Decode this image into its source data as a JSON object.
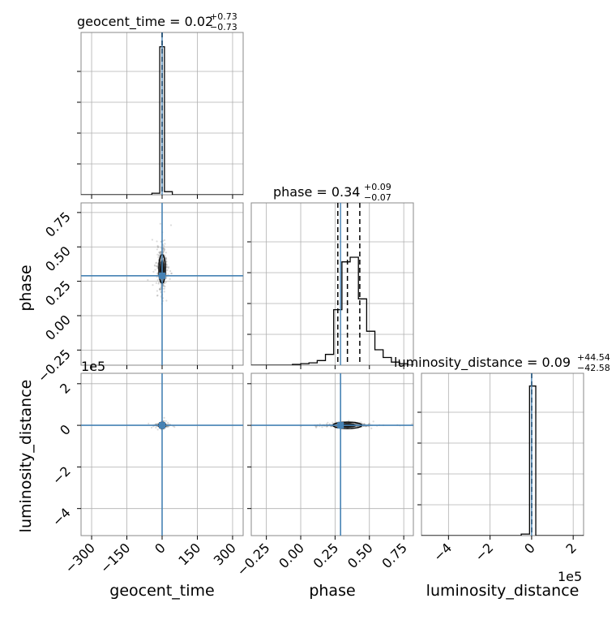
{
  "chart_data": {
    "type": "corner",
    "parameters": [
      "geocent_time",
      "phase",
      "luminosity_distance"
    ],
    "titles": {
      "geocent_time": {
        "name": "geocent_time",
        "median": "0.02",
        "plus": "+0.73",
        "minus": "−0.73"
      },
      "phase": {
        "name": "phase",
        "median": "0.34",
        "plus": "+0.09",
        "minus": "−0.07"
      },
      "luminosity_distance": {
        "name": "luminosity_distance",
        "median": "0.09",
        "plus": "+44.54",
        "minus": "−42.58"
      }
    },
    "ranges": {
      "geocent_time": [
        -345,
        345
      ],
      "phase": [
        -0.36,
        0.82
      ],
      "luminosity_distance": [
        -530000,
        250000
      ]
    },
    "ticks": {
      "geocent_time": {
        "values": [
          -300,
          -150,
          0,
          150,
          300
        ],
        "labels": [
          "−300",
          "−150",
          "0",
          "150",
          "300"
        ]
      },
      "phase": {
        "values": [
          -0.25,
          0.0,
          0.25,
          0.5,
          0.75
        ],
        "labels": [
          "−0.25",
          "0.00",
          "0.25",
          "0.50",
          "0.75"
        ]
      },
      "luminosity_distance": {
        "values": [
          -400000,
          -200000,
          0,
          200000
        ],
        "labels": [
          "−4",
          "−2",
          "0",
          "2"
        ]
      }
    },
    "offset_label": "1e5",
    "truths": {
      "geocent_time": 0.0,
      "phase": 0.29,
      "luminosity_distance": 0.0
    },
    "quantiles": {
      "geocent_time": [
        -0.71,
        0.02,
        0.75
      ],
      "phase": [
        0.27,
        0.34,
        0.43
      ],
      "luminosity_distance": [
        -42.49,
        0.09,
        44.63
      ]
    },
    "histograms": {
      "geocent_time": {
        "bins": [
          -345,
          -311.5,
          -278,
          -244.5,
          -211,
          -177.5,
          -144,
          -110.5,
          -77,
          -43.5,
          -10,
          10,
          43.5,
          77,
          110.5,
          144,
          177.5,
          211,
          244.5,
          278,
          311.5,
          345
        ],
        "counts": [
          0,
          0,
          0,
          0,
          0,
          0,
          0,
          0,
          0,
          0.01,
          0.96,
          0.02,
          0,
          0,
          0,
          0,
          0,
          0,
          0,
          0,
          0
        ]
      },
      "phase": {
        "bins": [
          -0.36,
          -0.3,
          -0.24,
          -0.18,
          -0.12,
          -0.06,
          0.0,
          0.06,
          0.12,
          0.18,
          0.24,
          0.3,
          0.36,
          0.42,
          0.48,
          0.54,
          0.6,
          0.66,
          0.72,
          0.78,
          0.82
        ],
        "counts": [
          0,
          0,
          0,
          0,
          0,
          0.005,
          0.01,
          0.015,
          0.03,
          0.07,
          0.36,
          0.67,
          0.7,
          0.43,
          0.22,
          0.1,
          0.05,
          0.02,
          0.01,
          0
        ]
      },
      "luminosity_distance": {
        "bins": [
          -530000,
          -490000,
          -450000,
          -410000,
          -370000,
          -330000,
          -290000,
          -250000,
          -210000,
          -170000,
          -130000,
          -90000,
          -50000,
          -10000,
          20000,
          60000,
          100000,
          140000,
          180000,
          220000,
          250000
        ],
        "counts": [
          0,
          0,
          0,
          0,
          0,
          0,
          0,
          0,
          0,
          0,
          0,
          0,
          0.01,
          0.97,
          0,
          0,
          0,
          0,
          0,
          0
        ]
      }
    },
    "grid": true,
    "truth_color": "#4682b4",
    "sample_color": "#888888",
    "line_color": "#000000"
  }
}
